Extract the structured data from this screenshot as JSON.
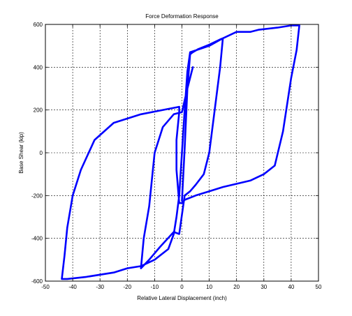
{
  "chart_data": {
    "type": "line",
    "title": "Force Deformation Response",
    "xlabel": "Relative Lateral Displacement (inch)",
    "ylabel": "Base Shear (kip)",
    "xlim": [
      -50,
      50
    ],
    "ylim": [
      -600,
      600
    ],
    "xticks": [
      -50,
      -40,
      -30,
      -20,
      -10,
      0,
      10,
      20,
      30,
      40,
      50
    ],
    "yticks": [
      -600,
      -400,
      -200,
      0,
      200,
      400,
      600
    ],
    "grid": true,
    "line_color": "#0000ff",
    "series": [
      {
        "values": [
          [
            0,
            -225
          ],
          [
            1,
            20
          ],
          [
            2,
            300
          ],
          [
            3,
            460
          ],
          [
            4,
            470
          ],
          [
            6,
            485
          ],
          [
            10,
            505
          ],
          [
            14,
            530
          ],
          [
            15,
            535
          ],
          [
            20,
            565
          ],
          [
            25,
            565
          ],
          [
            28,
            575
          ],
          [
            35,
            585
          ],
          [
            40,
            595
          ],
          [
            43,
            595
          ],
          [
            42,
            480
          ],
          [
            40,
            350
          ],
          [
            37,
            100
          ],
          [
            34,
            -60
          ],
          [
            30,
            -100
          ],
          [
            25,
            -130
          ],
          [
            20,
            -145
          ],
          [
            15,
            -160
          ],
          [
            10,
            -180
          ],
          [
            5,
            -200
          ],
          [
            1,
            -220
          ],
          [
            0,
            -235
          ],
          [
            -1,
            -235
          ],
          [
            -2,
            -80
          ],
          [
            -2,
            60
          ],
          [
            -1,
            190
          ],
          [
            -1,
            215
          ],
          [
            -5,
            205
          ],
          [
            -15,
            180
          ],
          [
            -25,
            140
          ],
          [
            -32,
            60
          ],
          [
            -37,
            -80
          ],
          [
            -40,
            -200
          ],
          [
            -42,
            -350
          ],
          [
            -43,
            -480
          ],
          [
            -44,
            -590
          ],
          [
            -42,
            -590
          ],
          [
            -35,
            -580
          ],
          [
            -25,
            -560
          ],
          [
            -20,
            -540
          ],
          [
            -15,
            -530
          ],
          [
            -10,
            -500
          ],
          [
            -5,
            -450
          ],
          [
            -3,
            -380
          ],
          [
            -2,
            -300
          ],
          [
            -1,
            -200
          ],
          [
            0,
            0
          ],
          [
            1,
            200
          ],
          [
            2,
            380
          ],
          [
            3,
            470
          ],
          [
            10,
            500
          ],
          [
            15,
            535
          ],
          [
            14,
            400
          ],
          [
            10,
            0
          ],
          [
            8,
            -100
          ],
          [
            5,
            -150
          ],
          [
            3,
            -180
          ],
          [
            1,
            -200
          ],
          [
            -1,
            -380
          ],
          [
            -3,
            -370
          ],
          [
            -8,
            -440
          ],
          [
            -12,
            -500
          ],
          [
            -15,
            -540
          ],
          [
            -14,
            -400
          ],
          [
            -12,
            -250
          ],
          [
            -10,
            0
          ],
          [
            -7,
            120
          ],
          [
            -3,
            180
          ],
          [
            0,
            190
          ],
          [
            2,
            300
          ],
          [
            4,
            400
          ]
        ]
      }
    ]
  }
}
